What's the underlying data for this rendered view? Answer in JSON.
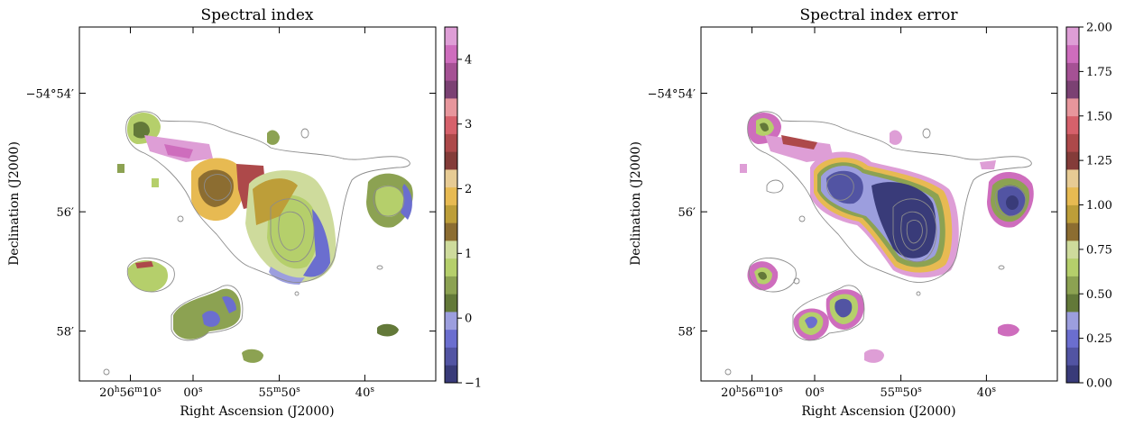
{
  "chart_data": [
    {
      "type": "heatmap",
      "title": "Spectral index",
      "xlabel": "Right Ascension (J2000)",
      "ylabel": "Declination (J2000)",
      "ra_ticks": [
        {
          "h": "20",
          "m": "56",
          "s": "10"
        },
        {
          "s": "00"
        },
        {
          "m": "55",
          "s": "50"
        },
        {
          "s": "40"
        }
      ],
      "dec_ticks": [
        {
          "d": "−54",
          "m": "54"
        },
        {
          "m": "56"
        },
        {
          "m": "58"
        }
      ],
      "colorbar": {
        "vmin": -1,
        "vmax": 4.5,
        "tick_labels": [
          "−1",
          "0",
          "1",
          "2",
          "3",
          "4"
        ],
        "colors": [
          "#393b79",
          "#5254a3",
          "#6b6ecf",
          "#9c9ede",
          "#637939",
          "#8ca252",
          "#b5cf6b",
          "#cedb9c",
          "#8c6d31",
          "#bd9e39",
          "#e7ba52",
          "#e7cb94",
          "#843c39",
          "#ad494a",
          "#d6616b",
          "#e7969c",
          "#7b4173",
          "#a55194",
          "#ce6dbd",
          "#de9ed6"
        ]
      }
    },
    {
      "type": "heatmap",
      "title": "Spectral index error",
      "xlabel": "Right Ascension (J2000)",
      "ylabel": "Declination (J2000)",
      "ra_ticks": [
        {
          "h": "20",
          "m": "56",
          "s": "10"
        },
        {
          "s": "00"
        },
        {
          "m": "55",
          "s": "50"
        },
        {
          "s": "40"
        }
      ],
      "dec_ticks": [
        {
          "d": "−54",
          "m": "54"
        },
        {
          "m": "56"
        },
        {
          "m": "58"
        }
      ],
      "colorbar": {
        "vmin": 0,
        "vmax": 2,
        "tick_labels": [
          "0.00",
          "0.25",
          "0.50",
          "0.75",
          "1.00",
          "1.25",
          "1.50",
          "1.75",
          "2.00"
        ],
        "colors": [
          "#393b79",
          "#5254a3",
          "#6b6ecf",
          "#9c9ede",
          "#637939",
          "#8ca252",
          "#b5cf6b",
          "#cedb9c",
          "#8c6d31",
          "#bd9e39",
          "#e7ba52",
          "#e7cb94",
          "#843c39",
          "#ad494a",
          "#d6616b",
          "#e7969c",
          "#7b4173",
          "#a55194",
          "#ce6dbd",
          "#de9ed6"
        ]
      }
    }
  ]
}
